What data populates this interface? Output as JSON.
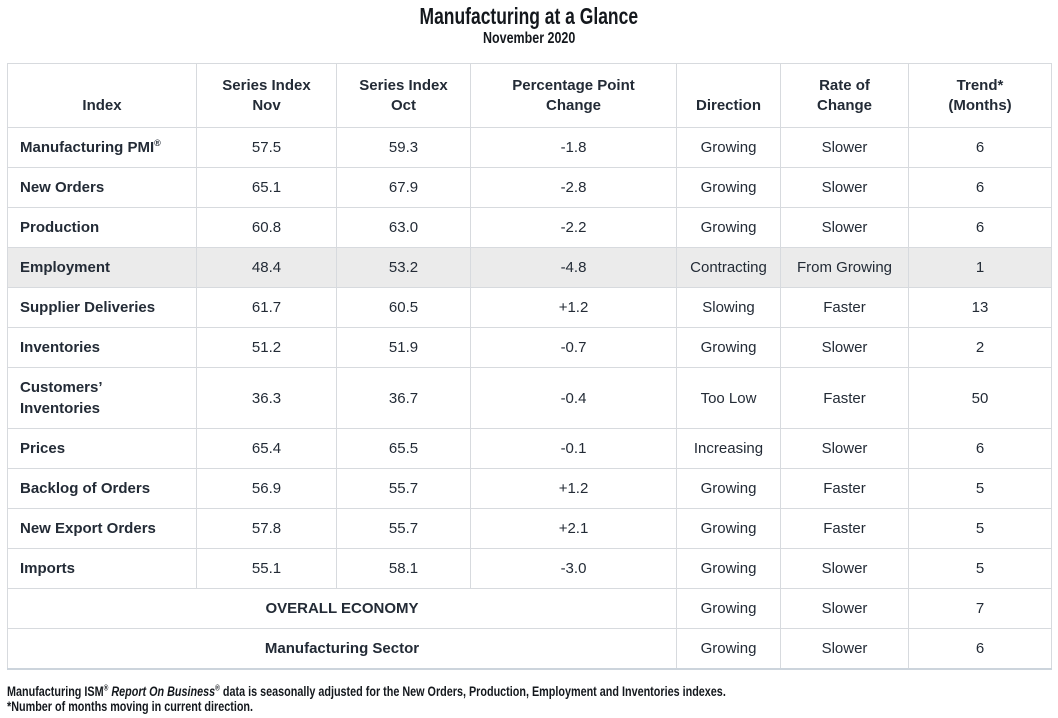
{
  "title": "Manufacturing at a Glance",
  "subtitle": "November 2020",
  "table": {
    "headers": [
      {
        "line1": "Index",
        "line2": ""
      },
      {
        "line1": "Series Index",
        "line2": "Nov"
      },
      {
        "line1": "Series Index",
        "line2": "Oct"
      },
      {
        "line1": "Percentage Point",
        "line2": "Change"
      },
      {
        "line1": "Direction",
        "line2": ""
      },
      {
        "line1": "Rate of",
        "line2": "Change"
      },
      {
        "line1": "Trend*",
        "line2": "(Months)"
      }
    ],
    "rows": [
      {
        "index": "Manufacturing PMI",
        "sup": "®",
        "nov": "57.5",
        "oct": "59.3",
        "change": "-1.8",
        "direction": "Growing",
        "rate": "Slower",
        "trend": "6"
      },
      {
        "index": "New Orders",
        "nov": "65.1",
        "oct": "67.9",
        "change": "-2.8",
        "direction": "Growing",
        "rate": "Slower",
        "trend": "6"
      },
      {
        "index": "Production",
        "nov": "60.8",
        "oct": "63.0",
        "change": "-2.2",
        "direction": "Growing",
        "rate": "Slower",
        "trend": "6"
      },
      {
        "index": "Employment",
        "nov": "48.4",
        "oct": "53.2",
        "change": "-4.8",
        "direction": "Contracting",
        "rate": "From Growing",
        "trend": "1",
        "highlight": "true"
      },
      {
        "index": "Supplier Deliveries",
        "nov": "61.7",
        "oct": "60.5",
        "change": "+1.2",
        "direction": "Slowing",
        "rate": "Faster",
        "trend": "13"
      },
      {
        "index": "Inventories",
        "nov": "51.2",
        "oct": "51.9",
        "change": "-0.7",
        "direction": "Growing",
        "rate": "Slower",
        "trend": "2"
      },
      {
        "index": "Customers’ Inventories",
        "nov": "36.3",
        "oct": "36.7",
        "change": "-0.4",
        "direction": "Too Low",
        "rate": "Faster",
        "trend": "50"
      },
      {
        "index": "Prices",
        "nov": "65.4",
        "oct": "65.5",
        "change": "-0.1",
        "direction": "Increasing",
        "rate": "Slower",
        "trend": "6"
      },
      {
        "index": "Backlog of Orders",
        "nov": "56.9",
        "oct": "55.7",
        "change": "+1.2",
        "direction": "Growing",
        "rate": "Faster",
        "trend": "5"
      },
      {
        "index": "New Export Orders",
        "nov": "57.8",
        "oct": "55.7",
        "change": "+2.1",
        "direction": "Growing",
        "rate": "Faster",
        "trend": "5"
      },
      {
        "index": "Imports",
        "nov": "55.1",
        "oct": "58.1",
        "change": "-3.0",
        "direction": "Growing",
        "rate": "Slower",
        "trend": "5"
      }
    ],
    "summary": [
      {
        "label": "OVERALL ECONOMY",
        "direction": "Growing",
        "rate": "Slower",
        "trend": "7"
      },
      {
        "label": "Manufacturing Sector",
        "direction": "Growing",
        "rate": "Slower",
        "trend": "6"
      }
    ]
  },
  "footnotes": {
    "line1_prefix": "Manufacturing ISM",
    "line1_reg1": "®",
    "line1_italic": "Report On Business",
    "line1_reg2": "®",
    "line1_rest": " data is seasonally adjusted for the New Orders, Production, Employment and Inventories indexes.",
    "line2": "*Number of months moving in current direction."
  }
}
